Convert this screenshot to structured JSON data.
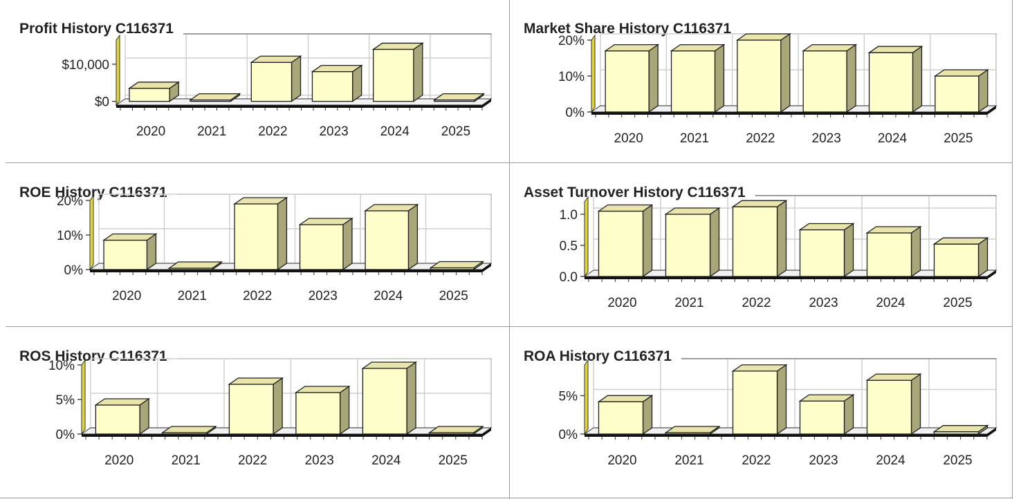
{
  "chart_data": [
    {
      "type": "bar",
      "title": "Profit History C116371",
      "categories": [
        "2020",
        "2021",
        "2022",
        "2023",
        "2024",
        "2025"
      ],
      "values": [
        3500,
        0,
        10500,
        8000,
        14000,
        0
      ],
      "ylim": [
        -1000,
        16500
      ],
      "yticks": [
        0,
        10000
      ],
      "ytick_labels": [
        "$0",
        "$10,000"
      ],
      "grid": true
    },
    {
      "type": "bar",
      "title": "Market Share History C116371",
      "categories": [
        "2020",
        "2021",
        "2022",
        "2023",
        "2024",
        "2025"
      ],
      "values": [
        17,
        17,
        20,
        17,
        16.5,
        10
      ],
      "ylim": [
        0,
        20
      ],
      "yticks": [
        0,
        10,
        20
      ],
      "ytick_labels": [
        "0%",
        "10%",
        "20%"
      ],
      "grid": true
    },
    {
      "type": "bar",
      "title": "ROE History C116371",
      "categories": [
        "2020",
        "2021",
        "2022",
        "2023",
        "2024",
        "2025"
      ],
      "values": [
        8.5,
        0,
        19,
        13,
        17,
        0.5
      ],
      "ylim": [
        0,
        20
      ],
      "yticks": [
        0,
        10,
        20
      ],
      "ytick_labels": [
        "0%",
        "10%",
        "20%"
      ],
      "grid": true
    },
    {
      "type": "bar",
      "title": "Asset Turnover History C116371",
      "categories": [
        "2020",
        "2021",
        "2022",
        "2023",
        "2024",
        "2025"
      ],
      "values": [
        1.05,
        1.0,
        1.12,
        0.75,
        0.7,
        0.52
      ],
      "ylim": [
        0,
        1.2
      ],
      "yticks": [
        0,
        0.5,
        1.0
      ],
      "ytick_labels": [
        "0.0",
        "0.5",
        "1.0"
      ],
      "grid": true
    },
    {
      "type": "bar",
      "title": "ROS History C116371",
      "categories": [
        "2020",
        "2021",
        "2022",
        "2023",
        "2024",
        "2025"
      ],
      "values": [
        4.2,
        0,
        7.2,
        6,
        9.5,
        0
      ],
      "ylim": [
        0,
        10
      ],
      "yticks": [
        0,
        5,
        10
      ],
      "ytick_labels": [
        "0%",
        "5%",
        "10%"
      ],
      "grid": true
    },
    {
      "type": "bar",
      "title": "ROA History C116371",
      "categories": [
        "2020",
        "2021",
        "2022",
        "2023",
        "2024",
        "2025"
      ],
      "values": [
        4.2,
        0,
        8.2,
        4.3,
        7,
        0.3
      ],
      "ylim": [
        0,
        9
      ],
      "yticks": [
        0,
        5
      ],
      "ytick_labels": [
        "0%",
        "5%"
      ],
      "grid": true
    }
  ],
  "colors": {
    "bar_face": "#ffffcc",
    "bar_top": "#e8e4ac",
    "bar_side": "#a9a779",
    "bar_outline": "#1e1e1e",
    "axis_accent": "#e0d53a",
    "grid": "#cfcfcf",
    "cell_border": "#9a9a9a"
  }
}
